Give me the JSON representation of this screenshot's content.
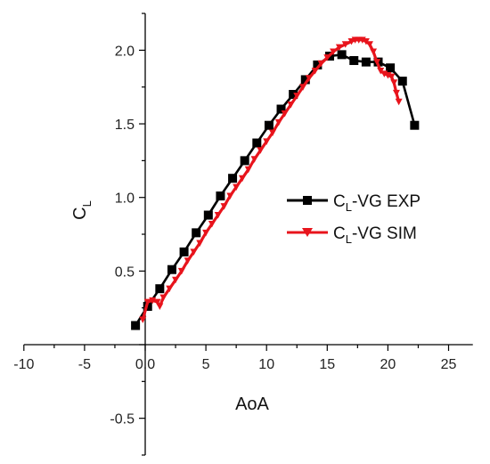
{
  "chart_data": {
    "type": "line",
    "xlabel": "AoA",
    "ylabel": {
      "main": "C",
      "sub": "L"
    },
    "xlim": [
      -10,
      27
    ],
    "ylim": [
      -0.75,
      2.25
    ],
    "x_ticks": [
      "-10",
      "-5",
      "0.0",
      "5",
      "10",
      "15",
      "20",
      "25"
    ],
    "y_ticks": [
      "-0.5",
      "0.0",
      "0.5",
      "1.0",
      "1.5",
      "2.0"
    ],
    "grid": false,
    "legend_position": "right-middle",
    "series": [
      {
        "name": {
          "main": "C",
          "sub": "L",
          "suffix": "-VG EXP"
        },
        "color": "#000000",
        "marker": "square",
        "x": [
          -0.8,
          0.2,
          1.2,
          2.2,
          3.2,
          4.2,
          5.2,
          6.2,
          7.2,
          8.2,
          9.2,
          10.2,
          11.2,
          12.2,
          13.2,
          14.2,
          15.2,
          16.2,
          17.2,
          18.2,
          19.2,
          20.2,
          21.2,
          22.2
        ],
        "y": [
          0.13,
          0.26,
          0.38,
          0.51,
          0.63,
          0.76,
          0.88,
          1.01,
          1.13,
          1.25,
          1.37,
          1.49,
          1.6,
          1.7,
          1.8,
          1.9,
          1.96,
          1.97,
          1.93,
          1.92,
          1.92,
          1.88,
          1.79,
          1.49
        ]
      },
      {
        "name": {
          "main": "C",
          "sub": "L",
          "suffix": "-VG SIM"
        },
        "color": "#e8141c",
        "marker": "triangle-down",
        "x": [
          -0.2,
          0.2,
          0.6,
          1.0,
          1.2,
          1.5,
          2.0,
          2.5,
          3.0,
          3.5,
          4.0,
          4.5,
          5.0,
          5.5,
          6.0,
          6.5,
          7.0,
          7.5,
          8.0,
          8.5,
          9.0,
          9.5,
          10.0,
          10.5,
          11.0,
          11.5,
          12.0,
          12.5,
          13.0,
          13.5,
          14.0,
          14.5,
          15.0,
          15.5,
          16.0,
          16.5,
          17.0,
          17.3,
          17.6,
          17.9,
          18.2,
          18.5,
          18.8,
          19.1,
          19.4,
          19.7,
          20.0,
          20.3,
          20.5,
          20.7,
          20.9
        ],
        "y": [
          0.17,
          0.29,
          0.3,
          0.29,
          0.26,
          0.32,
          0.38,
          0.44,
          0.5,
          0.57,
          0.63,
          0.69,
          0.76,
          0.82,
          0.88,
          0.94,
          1.01,
          1.07,
          1.13,
          1.19,
          1.26,
          1.32,
          1.38,
          1.44,
          1.51,
          1.57,
          1.63,
          1.69,
          1.75,
          1.81,
          1.86,
          1.91,
          1.95,
          1.99,
          2.02,
          2.04,
          2.06,
          2.07,
          2.07,
          2.07,
          2.06,
          2.04,
          1.99,
          1.92,
          1.86,
          1.84,
          1.83,
          1.82,
          1.78,
          1.71,
          1.65
        ]
      }
    ]
  }
}
